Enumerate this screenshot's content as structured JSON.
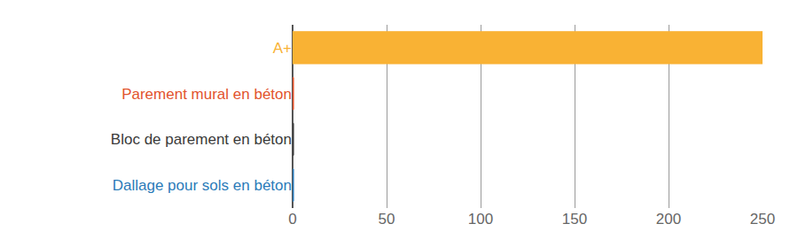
{
  "chart_data": {
    "type": "bar",
    "orientation": "horizontal",
    "categories": [
      "A+",
      "Parement mural en béton",
      "Bloc de parement en béton",
      "Dallage pour sols en béton"
    ],
    "values": [
      250,
      0.5,
      0.5,
      0.5
    ],
    "colors": [
      "#f9b234",
      "#e2532d",
      "#3a3a3a",
      "#2b7bb9"
    ],
    "xlim": [
      0,
      250
    ],
    "xticks": [
      0,
      50,
      100,
      150,
      200,
      250
    ],
    "grid": true
  }
}
